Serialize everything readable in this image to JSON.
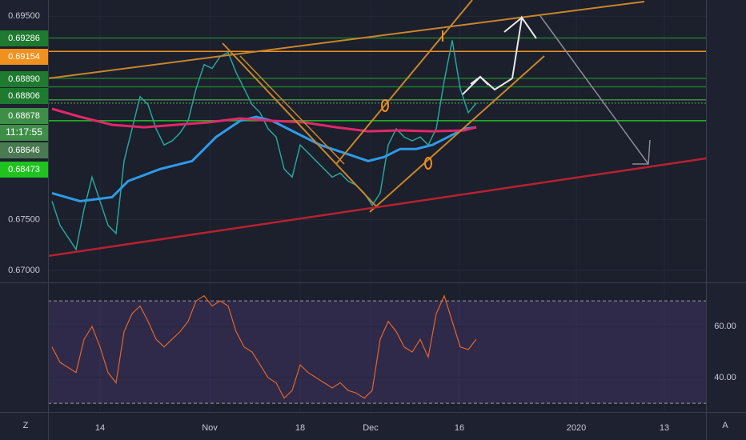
{
  "chart_data": [
    {
      "type": "line",
      "xlim": [
        0,
        82.2
      ],
      "ylim": [
        0.6689,
        0.6966
      ],
      "yticks": [
        {
          "value": 0.695,
          "label": "0.69500"
        },
        {
          "value": 0.675,
          "label": "0.67500"
        },
        {
          "value": 0.67,
          "label": "0.67000"
        }
      ],
      "xticks": [
        {
          "value": 6.5,
          "label": "14"
        },
        {
          "value": 20.2,
          "label": "Nov"
        },
        {
          "value": 31.5,
          "label": "18"
        },
        {
          "value": 40.3,
          "label": "Dec"
        },
        {
          "value": 51.4,
          "label": "16"
        },
        {
          "value": 66,
          "label": "2020"
        },
        {
          "value": 77,
          "label": "13"
        }
      ],
      "series": [
        {
          "color": "#26a69a",
          "x": [
            0.5,
            1.5,
            2.5,
            3.5,
            4.5,
            5.5,
            6.5,
            7.5,
            8.5,
            9.5,
            10.5,
            11.5,
            12.5,
            13.5,
            14.5,
            15.5,
            16.5,
            17.5,
            18.5,
            19.5,
            20.5,
            21.5,
            22.5,
            23.5,
            24.5,
            25.5,
            26.5,
            27.5,
            28.5,
            29.5,
            30.5,
            31.5,
            32.5,
            33.5,
            34.5,
            35.5,
            36.5,
            37.5,
            38.5,
            39.5,
            40.5,
            41.5,
            42.5,
            43.5,
            44.5,
            45.5,
            46.5,
            47.5,
            48.5,
            49.5,
            50.5,
            51.5,
            52.5,
            53.5
          ],
          "values": [
            0.67681,
            0.67443,
            0.67325,
            0.67206,
            0.67602,
            0.67918,
            0.67681,
            0.67443,
            0.67364,
            0.68076,
            0.68393,
            0.68709,
            0.6863,
            0.68393,
            0.68234,
            0.68274,
            0.68353,
            0.68472,
            0.68788,
            0.69025,
            0.68986,
            0.69104,
            0.69144,
            0.68946,
            0.68788,
            0.6863,
            0.68551,
            0.68393,
            0.68313,
            0.67997,
            0.67918,
            0.68234,
            0.68155,
            0.68076,
            0.67997,
            0.67918,
            0.67958,
            0.67878,
            0.67839,
            0.6776,
            0.67641,
            0.6776,
            0.68234,
            0.68393,
            0.68313,
            0.68274,
            0.68313,
            0.68234,
            0.68393,
            0.68867,
            0.69263,
            0.68788,
            0.68551,
            0.68646
          ]
        },
        {
          "color": "#2e9be8",
          "x": [
            0.5,
            4,
            8,
            10,
            14,
            18,
            21,
            24,
            26,
            28,
            31,
            34,
            37,
            40,
            42,
            44,
            46,
            48,
            50,
            52,
            53.5
          ],
          "values": [
            0.6776,
            0.67681,
            0.6772,
            0.67878,
            0.67997,
            0.68076,
            0.68313,
            0.68472,
            0.68511,
            0.68472,
            0.68353,
            0.68234,
            0.68155,
            0.68076,
            0.68116,
            0.68195,
            0.68195,
            0.68234,
            0.68313,
            0.68393,
            0.68408
          ]
        },
        {
          "color": "#e0286a",
          "x": [
            0.5,
            4,
            8,
            12,
            16,
            20,
            24,
            28,
            32,
            36,
            40,
            44,
            48,
            52,
            53.5
          ],
          "values": [
            0.6859,
            0.68511,
            0.68432,
            0.68408,
            0.68432,
            0.68456,
            0.68495,
            0.68472,
            0.68456,
            0.68408,
            0.68369,
            0.68377,
            0.68369,
            0.68377,
            0.68408
          ]
        }
      ],
      "price_levels": {
        "values": [
          0.69286,
          0.69154,
          0.6889,
          0.68806,
          0.68678,
          0.68646,
          0.68473
        ],
        "value_labels": [
          "0.69286",
          "0.69154",
          "0.68890",
          "0.68806",
          "0.68678",
          "0.68646",
          "0.68473"
        ],
        "colors": [
          "#1e7a2e",
          "#f0901e",
          "#1e7a2e",
          "#1e7a2e",
          "#3e8e48",
          "#4a7a52",
          "#1fc21f"
        ]
      },
      "countdown": "11:17:55",
      "corner_labels": [
        "Z",
        "A"
      ]
    },
    {
      "type": "line",
      "xlim": [
        0,
        82.2
      ],
      "ylim": [
        26.6,
        76.6
      ],
      "yticks": [
        {
          "value": 60,
          "label": "60.00"
        },
        {
          "value": 40,
          "label": "40.00"
        }
      ],
      "bands": [
        30,
        70
      ],
      "series": [
        {
          "color": "#e0672a",
          "x": [
            0.5,
            1.5,
            2.5,
            3.5,
            4.5,
            5.5,
            6.5,
            7.5,
            8.5,
            9.5,
            10.5,
            11.5,
            12.5,
            13.5,
            14.5,
            15.5,
            16.5,
            17.5,
            18.5,
            19.5,
            20.5,
            21.5,
            22.5,
            23.5,
            24.5,
            25.5,
            26.5,
            27.5,
            28.5,
            29.5,
            30.5,
            31.5,
            32.5,
            33.5,
            34.5,
            35.5,
            36.5,
            37.5,
            38.5,
            39.5,
            40.5,
            41.5,
            42.5,
            43.5,
            44.5,
            45.5,
            46.5,
            47.5,
            48.5,
            49.5,
            50.5,
            51.5,
            52.5,
            53.5
          ],
          "values": [
            52,
            46,
            44,
            42,
            55,
            60,
            52,
            42,
            38,
            58,
            65,
            68,
            62,
            55,
            52,
            55,
            58,
            62,
            70,
            72,
            68,
            70,
            68,
            58,
            52,
            50,
            45,
            40,
            38,
            32,
            35,
            45,
            42,
            40,
            38,
            36,
            38,
            35,
            34,
            32,
            35,
            55,
            62,
            58,
            52,
            50,
            55,
            48,
            65,
            72,
            62,
            52,
            51,
            55
          ]
        }
      ]
    }
  ]
}
